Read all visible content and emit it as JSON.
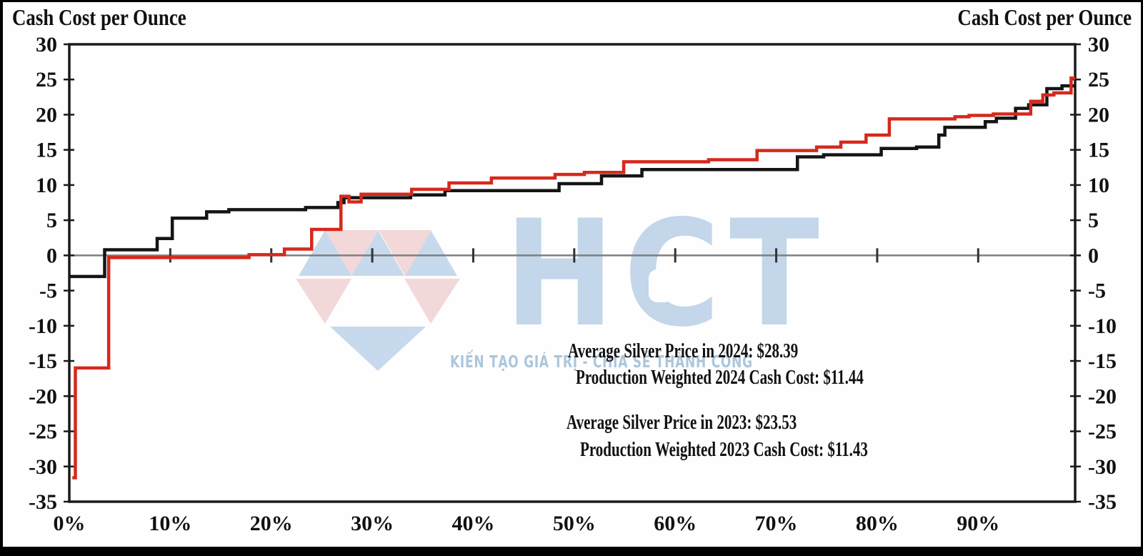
{
  "titles": {
    "left": "Cash Cost per Ounce",
    "right": "Cash Cost per Ounce"
  },
  "watermark": {
    "logo_text": "HCT",
    "tagline": "KIẾN TẠO GIÁ TRỊ - CHIA SẺ THÀNH CÔNG",
    "gem_blue": "#c7d9ec",
    "gem_pink": "#f3d8d9",
    "letters_blue": "#c3d6ea",
    "tagline_blue": "#a4c0d8"
  },
  "chart_data": {
    "type": "line",
    "line_style": "step-after",
    "title_left": "Cash Cost per Ounce",
    "title_right": "Cash Cost per Ounce",
    "x_tick_labels": [
      "0%",
      "10%",
      "20%",
      "30%",
      "40%",
      "50%",
      "60%",
      "70%",
      "80%",
      "90%"
    ],
    "x_tick_values": [
      0,
      10,
      20,
      30,
      40,
      50,
      60,
      70,
      80,
      90
    ],
    "xlim": [
      0,
      99.6
    ],
    "y_tick_values": [
      30,
      25,
      20,
      15,
      10,
      5,
      0,
      -5,
      -10,
      -15,
      -20,
      -25,
      -30,
      -35
    ],
    "ylim": [
      -35,
      30
    ],
    "y_axis_sides": [
      "left",
      "right"
    ],
    "grid": "zero-line-only",
    "zero_line_color": "#7f7f7f",
    "frame_color": "#1a1a1a",
    "series": [
      {
        "name": "black",
        "color": "#141414",
        "points": [
          [
            0,
            -3.0
          ],
          [
            3.5,
            0.8
          ],
          [
            8.7,
            2.4
          ],
          [
            10.2,
            5.3
          ],
          [
            13.6,
            6.2
          ],
          [
            15.8,
            6.5
          ],
          [
            23.4,
            6.8
          ],
          [
            26.6,
            7.5
          ],
          [
            27.2,
            8.2
          ],
          [
            33.8,
            8.6
          ],
          [
            37.2,
            9.2
          ],
          [
            48.5,
            10.2
          ],
          [
            52.7,
            11.3
          ],
          [
            56.7,
            12.2
          ],
          [
            72.1,
            14.0
          ],
          [
            74.7,
            14.3
          ],
          [
            80.4,
            15.2
          ],
          [
            83.9,
            15.4
          ],
          [
            86.1,
            17.1
          ],
          [
            86.7,
            18.2
          ],
          [
            90.7,
            19.0
          ],
          [
            91.8,
            19.5
          ],
          [
            93.7,
            20.9
          ],
          [
            95.0,
            21.4
          ],
          [
            96.8,
            23.7
          ],
          [
            98.3,
            24.1
          ],
          [
            99.6,
            24.1
          ]
        ]
      },
      {
        "name": "red",
        "color": "#d6291c",
        "points": [
          [
            0.3,
            -31.6
          ],
          [
            0.6,
            -16.0
          ],
          [
            3.9,
            -0.3
          ],
          [
            17.8,
            0.1
          ],
          [
            21.3,
            0.9
          ],
          [
            24.0,
            3.7
          ],
          [
            26.9,
            8.4
          ],
          [
            27.7,
            7.6
          ],
          [
            28.9,
            8.7
          ],
          [
            33.9,
            9.4
          ],
          [
            37.6,
            10.3
          ],
          [
            41.8,
            11.0
          ],
          [
            48.1,
            11.5
          ],
          [
            51.0,
            11.8
          ],
          [
            54.9,
            13.3
          ],
          [
            63.3,
            13.6
          ],
          [
            68.1,
            14.9
          ],
          [
            74.0,
            15.4
          ],
          [
            76.4,
            16.1
          ],
          [
            78.9,
            17.1
          ],
          [
            81.2,
            19.4
          ],
          [
            87.7,
            19.7
          ],
          [
            89.1,
            19.9
          ],
          [
            91.5,
            20.1
          ],
          [
            95.2,
            21.9
          ],
          [
            96.4,
            22.8
          ],
          [
            97.5,
            23.1
          ],
          [
            99.2,
            25.2
          ],
          [
            99.6,
            25.2
          ]
        ]
      }
    ],
    "annotations": [
      "Average Silver Price in 2024: $28.39",
      "Production Weighted 2024 Cash Cost: $11.44",
      "Average Silver Price in 2023: $23.53",
      "Production Weighted 2023 Cash Cost: $11.43"
    ]
  }
}
